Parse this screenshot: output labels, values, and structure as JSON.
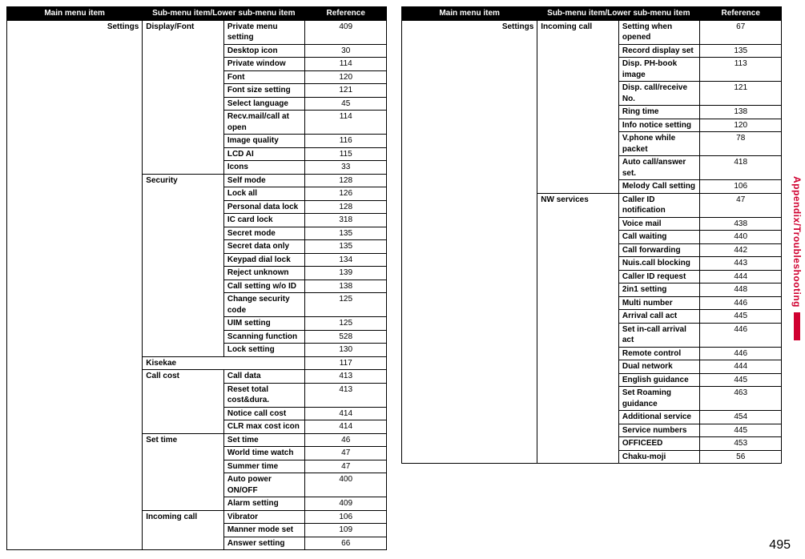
{
  "side_label": "Appendix/Troubleshooting",
  "page_number": "495",
  "headers": {
    "main": "Main menu item",
    "sub": "Sub-menu item/Lower sub-menu item",
    "ref": "Reference"
  },
  "left_table": [
    {
      "main": "Settings",
      "sub1": "Display/Font",
      "sub2": "Private menu setting",
      "ref": "409"
    },
    {
      "main": "",
      "sub1": "",
      "sub2": "Desktop icon",
      "ref": "30"
    },
    {
      "main": "",
      "sub1": "",
      "sub2": "Private window",
      "ref": "114"
    },
    {
      "main": "",
      "sub1": "",
      "sub2": "Font",
      "ref": "120"
    },
    {
      "main": "",
      "sub1": "",
      "sub2": "Font size setting",
      "ref": "121"
    },
    {
      "main": "",
      "sub1": "",
      "sub2": "Select language",
      "ref": "45"
    },
    {
      "main": "",
      "sub1": "",
      "sub2": "Recv.mail/call at open",
      "ref": "114"
    },
    {
      "main": "",
      "sub1": "",
      "sub2": "Image quality",
      "ref": "116"
    },
    {
      "main": "",
      "sub1": "",
      "sub2": "LCD AI",
      "ref": "115"
    },
    {
      "main": "",
      "sub1": "",
      "sub2": "Icons",
      "ref": "33"
    },
    {
      "main": "",
      "sub1": "Security",
      "sub2": "Self mode",
      "ref": "128"
    },
    {
      "main": "",
      "sub1": "",
      "sub2": "Lock all",
      "ref": "126"
    },
    {
      "main": "",
      "sub1": "",
      "sub2": "Personal data lock",
      "ref": "128"
    },
    {
      "main": "",
      "sub1": "",
      "sub2": "IC card lock",
      "ref": "318"
    },
    {
      "main": "",
      "sub1": "",
      "sub2": "Secret mode",
      "ref": "135"
    },
    {
      "main": "",
      "sub1": "",
      "sub2": "Secret data only",
      "ref": "135"
    },
    {
      "main": "",
      "sub1": "",
      "sub2": "Keypad dial lock",
      "ref": "134"
    },
    {
      "main": "",
      "sub1": "",
      "sub2": "Reject unknown",
      "ref": "139"
    },
    {
      "main": "",
      "sub1": "",
      "sub2": "Call setting w/o ID",
      "ref": "138"
    },
    {
      "main": "",
      "sub1": "",
      "sub2": "Change security code",
      "ref": "125"
    },
    {
      "main": "",
      "sub1": "",
      "sub2": "UIM setting",
      "ref": "125"
    },
    {
      "main": "",
      "sub1": "",
      "sub2": "Scanning function",
      "ref": "528"
    },
    {
      "main": "",
      "sub1": "",
      "sub2": "Lock setting",
      "ref": "130"
    },
    {
      "main": "",
      "sub1": "Kisekae",
      "sub2": "",
      "ref": "117",
      "span": true
    },
    {
      "main": "",
      "sub1": "Call cost",
      "sub2": "Call data",
      "ref": "413"
    },
    {
      "main": "",
      "sub1": "",
      "sub2": "Reset total cost&dura.",
      "ref": "413"
    },
    {
      "main": "",
      "sub1": "",
      "sub2": "Notice call cost",
      "ref": "414"
    },
    {
      "main": "",
      "sub1": "",
      "sub2": "CLR max cost icon",
      "ref": "414"
    },
    {
      "main": "",
      "sub1": "Set time",
      "sub2": "Set time",
      "ref": "46"
    },
    {
      "main": "",
      "sub1": "",
      "sub2": "World time watch",
      "ref": "47"
    },
    {
      "main": "",
      "sub1": "",
      "sub2": "Summer time",
      "ref": "47"
    },
    {
      "main": "",
      "sub1": "",
      "sub2": "Auto power ON/OFF",
      "ref": "400"
    },
    {
      "main": "",
      "sub1": "",
      "sub2": "Alarm setting",
      "ref": "409"
    },
    {
      "main": "",
      "sub1": "Incoming call",
      "sub2": "Vibrator",
      "ref": "106"
    },
    {
      "main": "",
      "sub1": "",
      "sub2": "Manner mode set",
      "ref": "109"
    },
    {
      "main": "",
      "sub1": "",
      "sub2": "Answer setting",
      "ref": "66"
    }
  ],
  "right_table": [
    {
      "main": "Settings",
      "sub1": "Incoming call",
      "sub2": "Setting when opened",
      "ref": "67"
    },
    {
      "main": "",
      "sub1": "",
      "sub2": "Record display set",
      "ref": "135"
    },
    {
      "main": "",
      "sub1": "",
      "sub2": "Disp. PH-book image",
      "ref": "113"
    },
    {
      "main": "",
      "sub1": "",
      "sub2": "Disp. call/receive No.",
      "ref": "121"
    },
    {
      "main": "",
      "sub1": "",
      "sub2": "Ring time",
      "ref": "138"
    },
    {
      "main": "",
      "sub1": "",
      "sub2": "Info notice setting",
      "ref": "120"
    },
    {
      "main": "",
      "sub1": "",
      "sub2": "V.phone while packet",
      "ref": "78"
    },
    {
      "main": "",
      "sub1": "",
      "sub2": "Auto call/answer set.",
      "ref": "418"
    },
    {
      "main": "",
      "sub1": "",
      "sub2": "Melody Call setting",
      "ref": "106"
    },
    {
      "main": "",
      "sub1": "NW services",
      "sub2": "Caller ID notification",
      "ref": "47"
    },
    {
      "main": "",
      "sub1": "",
      "sub2": "Voice mail",
      "ref": "438"
    },
    {
      "main": "",
      "sub1": "",
      "sub2": "Call waiting",
      "ref": "440"
    },
    {
      "main": "",
      "sub1": "",
      "sub2": "Call forwarding",
      "ref": "442"
    },
    {
      "main": "",
      "sub1": "",
      "sub2": "Nuis.call blocking",
      "ref": "443"
    },
    {
      "main": "",
      "sub1": "",
      "sub2": "Caller ID request",
      "ref": "444"
    },
    {
      "main": "",
      "sub1": "",
      "sub2": "2in1 setting",
      "ref": "448"
    },
    {
      "main": "",
      "sub1": "",
      "sub2": "Multi number",
      "ref": "446"
    },
    {
      "main": "",
      "sub1": "",
      "sub2": "Arrival call act",
      "ref": "445"
    },
    {
      "main": "",
      "sub1": "",
      "sub2": "Set in-call arrival act",
      "ref": "446"
    },
    {
      "main": "",
      "sub1": "",
      "sub2": "Remote control",
      "ref": "446"
    },
    {
      "main": "",
      "sub1": "",
      "sub2": "Dual network",
      "ref": "444"
    },
    {
      "main": "",
      "sub1": "",
      "sub2": "English guidance",
      "ref": "445"
    },
    {
      "main": "",
      "sub1": "",
      "sub2": "Set Roaming guidance",
      "ref": "463"
    },
    {
      "main": "",
      "sub1": "",
      "sub2": "Additional service",
      "ref": "454"
    },
    {
      "main": "",
      "sub1": "",
      "sub2": "Service numbers",
      "ref": "445"
    },
    {
      "main": "",
      "sub1": "",
      "sub2": "OFFICEED",
      "ref": "453"
    },
    {
      "main": "",
      "sub1": "",
      "sub2": "Chaku-moji",
      "ref": "56"
    }
  ]
}
